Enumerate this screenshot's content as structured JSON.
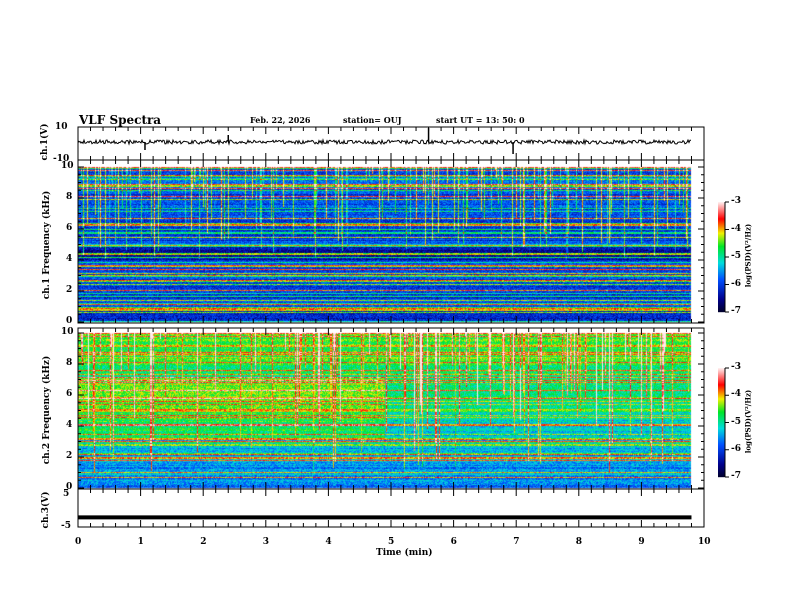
{
  "header": {
    "title": "VLF Spectra",
    "date": "Feb. 22, 2026",
    "station": "station= OUJ",
    "start": "start  UT =   13: 50: 0"
  },
  "chart_data": [
    {
      "type": "line",
      "title": "ch.1(V)",
      "ylabel": "ch.1(V)",
      "ylim": [
        -10,
        10
      ],
      "yticks": [
        "10",
        "-10"
      ],
      "xlim": [
        0,
        10
      ],
      "description_values": {
        "baseline": 0
      }
    },
    {
      "type": "heatmap",
      "ylabel": "ch.1 Frequency (kHz)",
      "ylim": [
        0,
        10
      ],
      "yticks": [
        "0",
        "2",
        "4",
        "6",
        "8",
        "10"
      ],
      "xlim": [
        0,
        9.8
      ],
      "colorbar": {
        "label": "log(PSD)(V²/Hz)",
        "range": [
          -7,
          -3
        ],
        "ticks": [
          "-3",
          "-4",
          "-5",
          "-6",
          "-7"
        ]
      }
    },
    {
      "type": "heatmap",
      "ylabel": "ch.2 Frequency (kHz)",
      "ylim": [
        0,
        10
      ],
      "yticks": [
        "0",
        "2",
        "4",
        "6",
        "8",
        "10"
      ],
      "xlim": [
        0,
        9.8
      ],
      "colorbar": {
        "label": "log(PSD)(V²/Hz)",
        "range": [
          -7,
          -3
        ],
        "ticks": [
          "-3",
          "-4",
          "-5",
          "-6",
          "-7"
        ]
      }
    },
    {
      "type": "line",
      "ylabel": "ch.3(V)",
      "ylim": [
        -5,
        5
      ],
      "yticks": [
        "5",
        "-5"
      ],
      "xlim": [
        0,
        10
      ],
      "xlabel": "Time  (min)",
      "xticks": [
        "0",
        "1",
        "2",
        "3",
        "4",
        "5",
        "6",
        "7",
        "8",
        "9",
        "10"
      ],
      "series": [
        {
          "name": "ch.3",
          "x": [
            0,
            9.8
          ],
          "y": [
            -2,
            -2
          ]
        }
      ]
    }
  ]
}
